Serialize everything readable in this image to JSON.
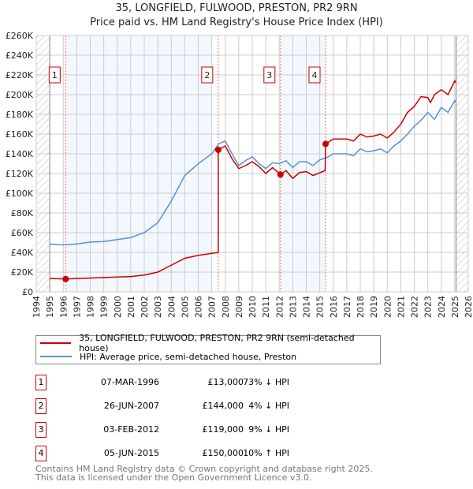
{
  "chart_data": {
    "type": "line",
    "title": "35, LONGFIELD, FULWOOD, PRESTON, PR2 9RN",
    "subtitle": "Price paid vs. HM Land Registry's House Price Index (HPI)",
    "xlim": [
      1994,
      2026
    ],
    "ylim": [
      0,
      260000
    ],
    "x_ticks": [
      "1994",
      "1995",
      "1996",
      "1997",
      "1998",
      "1999",
      "2000",
      "2001",
      "2002",
      "2003",
      "2004",
      "2005",
      "2006",
      "2007",
      "2008",
      "2009",
      "2010",
      "2011",
      "2012",
      "2013",
      "2014",
      "2015",
      "2016",
      "2017",
      "2018",
      "2019",
      "2020",
      "2021",
      "2022",
      "2023",
      "2024",
      "2025",
      "2026"
    ],
    "y_ticks": [
      {
        "v": 0,
        "l": "£0"
      },
      {
        "v": 20000,
        "l": "£20K"
      },
      {
        "v": 40000,
        "l": "£40K"
      },
      {
        "v": 60000,
        "l": "£60K"
      },
      {
        "v": 80000,
        "l": "£80K"
      },
      {
        "v": 100000,
        "l": "£100K"
      },
      {
        "v": 120000,
        "l": "£120K"
      },
      {
        "v": 140000,
        "l": "£140K"
      },
      {
        "v": 160000,
        "l": "£160K"
      },
      {
        "v": 180000,
        "l": "£180K"
      },
      {
        "v": 200000,
        "l": "£200K"
      },
      {
        "v": 220000,
        "l": "£220K"
      },
      {
        "v": 240000,
        "l": "£240K"
      },
      {
        "v": 260000,
        "l": "£260K"
      }
    ],
    "grid": true,
    "hatched_before": 1995,
    "hatched_after": 2025.1,
    "shaded_bands": [
      [
        1996.18,
        2007.0
      ],
      [
        2012.09,
        2015.43
      ]
    ],
    "series": [
      {
        "name": "35, LONGFIELD, FULWOOD, PRESTON, PR2 9RN (semi-detached house)",
        "color": "#cc0000",
        "points": [
          [
            1995,
            13500
          ],
          [
            1996.18,
            13000
          ],
          [
            1997,
            13500
          ],
          [
            1998,
            14000
          ],
          [
            1999,
            14500
          ],
          [
            2000,
            15000
          ],
          [
            2001,
            15500
          ],
          [
            2002,
            17000
          ],
          [
            2003,
            20000
          ],
          [
            2004,
            27000
          ],
          [
            2005,
            34000
          ],
          [
            2006,
            37000
          ],
          [
            2007,
            39000
          ],
          [
            2007.48,
            40000
          ],
          [
            2007.48,
            144000
          ],
          [
            2008,
            148000
          ],
          [
            2008.5,
            135000
          ],
          [
            2009,
            125000
          ],
          [
            2009.5,
            128000
          ],
          [
            2010,
            132000
          ],
          [
            2010.5,
            127000
          ],
          [
            2011,
            120000
          ],
          [
            2011.5,
            126000
          ],
          [
            2012.09,
            119000
          ],
          [
            2012.5,
            123000
          ],
          [
            2013,
            115000
          ],
          [
            2013.5,
            121000
          ],
          [
            2014,
            122000
          ],
          [
            2014.5,
            118000
          ],
          [
            2015.4,
            123000
          ],
          [
            2015.43,
            150000
          ],
          [
            2016,
            155000
          ],
          [
            2017,
            155000
          ],
          [
            2017.5,
            153000
          ],
          [
            2018,
            160000
          ],
          [
            2018.5,
            157000
          ],
          [
            2019,
            158000
          ],
          [
            2019.5,
            160000
          ],
          [
            2020,
            156000
          ],
          [
            2020.5,
            162000
          ],
          [
            2021,
            170000
          ],
          [
            2021.5,
            182000
          ],
          [
            2022,
            188000
          ],
          [
            2022.5,
            198000
          ],
          [
            2023,
            197000
          ],
          [
            2023.2,
            192000
          ],
          [
            2023.5,
            200000
          ],
          [
            2024,
            205000
          ],
          [
            2024.5,
            200000
          ],
          [
            2025,
            214000
          ],
          [
            2025.1,
            212000
          ]
        ]
      },
      {
        "name": "HPI: Average price, semi-detached house, Preston",
        "color": "#5b8fd4",
        "points": [
          [
            1995,
            48500
          ],
          [
            1996,
            47500
          ],
          [
            1997,
            48500
          ],
          [
            1998,
            50500
          ],
          [
            1999,
            51000
          ],
          [
            2000,
            53000
          ],
          [
            2001,
            55000
          ],
          [
            2002,
            60000
          ],
          [
            2003,
            70000
          ],
          [
            2004,
            92000
          ],
          [
            2005,
            118000
          ],
          [
            2006,
            130000
          ],
          [
            2007,
            140000
          ],
          [
            2007.5,
            150000
          ],
          [
            2008,
            153000
          ],
          [
            2008.5,
            140000
          ],
          [
            2009,
            128000
          ],
          [
            2009.5,
            133000
          ],
          [
            2010,
            137000
          ],
          [
            2010.5,
            130000
          ],
          [
            2011,
            125000
          ],
          [
            2011.5,
            131000
          ],
          [
            2012,
            130000
          ],
          [
            2012.5,
            133000
          ],
          [
            2013,
            126000
          ],
          [
            2013.5,
            132000
          ],
          [
            2014,
            132000
          ],
          [
            2014.5,
            128000
          ],
          [
            2015,
            134000
          ],
          [
            2015.5,
            136000
          ],
          [
            2016,
            140000
          ],
          [
            2017,
            140000
          ],
          [
            2017.5,
            138000
          ],
          [
            2018,
            145000
          ],
          [
            2018.5,
            142000
          ],
          [
            2019,
            143000
          ],
          [
            2019.5,
            145000
          ],
          [
            2020,
            141000
          ],
          [
            2020.5,
            148000
          ],
          [
            2021,
            153000
          ],
          [
            2021.5,
            160000
          ],
          [
            2022,
            168000
          ],
          [
            2022.5,
            174000
          ],
          [
            2023,
            182000
          ],
          [
            2023.5,
            175000
          ],
          [
            2024,
            187000
          ],
          [
            2024.5,
            182000
          ],
          [
            2025,
            194000
          ],
          [
            2025.1,
            192000
          ]
        ]
      }
    ],
    "sales": [
      {
        "n": "1",
        "x": 1996.18,
        "y": 13000,
        "date": "07-MAR-1996",
        "price": "£13,000",
        "hpi": "73% ↓ HPI"
      },
      {
        "n": "2",
        "x": 2007.48,
        "y": 144000,
        "date": "26-JUN-2007",
        "price": "£144,000",
        "hpi": "4% ↓ HPI"
      },
      {
        "n": "3",
        "x": 2012.09,
        "y": 119000,
        "date": "03-FEB-2012",
        "price": "£119,000",
        "hpi": "9% ↓ HPI"
      },
      {
        "n": "4",
        "x": 2015.43,
        "y": 150000,
        "date": "05-JUN-2015",
        "price": "£150,000",
        "hpi": "10% ↑ HPI"
      }
    ]
  },
  "footer": {
    "line1": "Contains HM Land Registry data © Crown copyright and database right 2025.",
    "line2": "This data is licensed under the Open Government Licence v3.0."
  }
}
